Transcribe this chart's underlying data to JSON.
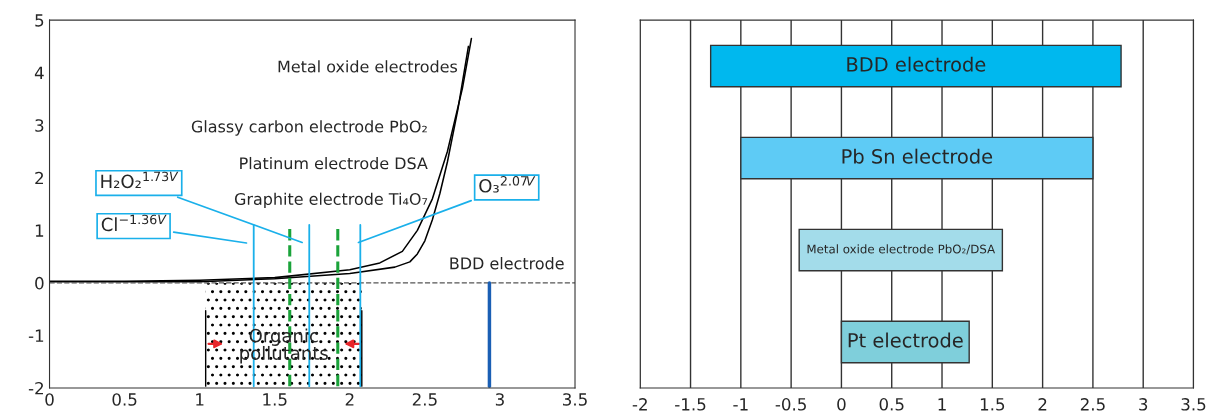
{
  "chart_data": [
    {
      "type": "line",
      "xlim": [
        0,
        3.5
      ],
      "ylim": [
        -2,
        5
      ],
      "xticks": [
        0,
        0.5,
        1,
        1.5,
        2,
        2.5,
        3,
        3.5
      ],
      "yticks": [
        -2,
        -1,
        0,
        1,
        2,
        3,
        4,
        5
      ],
      "grid": false,
      "series": [
        {
          "color": "#000000",
          "x": [
            0,
            0.5,
            1,
            1.5,
            2,
            2.2,
            2.35,
            2.45,
            2.55,
            2.65,
            2.75,
            2.81
          ],
          "values": [
            0.03,
            0.03,
            0.05,
            0.1,
            0.25,
            0.38,
            0.6,
            1.0,
            1.6,
            2.5,
            3.7,
            4.65
          ]
        },
        {
          "color": "#000000",
          "x": [
            0,
            1,
            1.5,
            2,
            2.3,
            2.4,
            2.45,
            2.5,
            2.55,
            2.6,
            2.65,
            2.72,
            2.79
          ],
          "values": [
            0.02,
            0.02,
            0.08,
            0.18,
            0.3,
            0.4,
            0.55,
            0.8,
            1.2,
            1.7,
            2.3,
            3.3,
            4.5
          ]
        }
      ],
      "ref_lines": [
        {
          "axis": "y",
          "value": 0,
          "color": "#555555",
          "line_style": "dashed"
        },
        {
          "axis": "x",
          "value": 1.36,
          "color": "#1ab0ea",
          "label": "Cl$^{−1.36V}$"
        },
        {
          "axis": "x",
          "value": 1.73,
          "color": "#1ab0ea",
          "label": "H₂O₂$^{1.73V}$"
        },
        {
          "axis": "x",
          "value": 2.07,
          "color": "#1ab0ea",
          "label": "O₃$^{2.07V}$"
        },
        {
          "axis": "x",
          "value": 1.6,
          "color": "#1aa33a",
          "line_style": "dashed"
        },
        {
          "axis": "x",
          "value": 1.92,
          "color": "#1aa33a",
          "line_style": "dashed"
        },
        {
          "axis": "x",
          "value": 2.93,
          "color": "#1a5fb4"
        },
        {
          "axis": "x",
          "value": 1.04,
          "color": "#000000"
        },
        {
          "axis": "x",
          "value": 2.08,
          "color": "#000000"
        }
      ],
      "bands": [
        {
          "axis": "x",
          "from": 1.04,
          "to": 2.08,
          "label": "Organic\npollutants",
          "color": "#000000"
        }
      ],
      "annotations": [
        "Metal oxide electrodes",
        "Glassy carbon electrode PbO₂",
        "Platinum electrode DSA",
        "Graphite electrode Ti₄O₇",
        "BDD electrode"
      ]
    },
    {
      "type": "bar",
      "orientation": "horizontal",
      "categories": [
        "BDD electrode",
        "Pb Sn electrode",
        "Metal oxide electrode PbO₂/DSA",
        "Pt electrode"
      ],
      "base": [
        -1.3,
        -1,
        -0.42,
        0
      ],
      "values": [
        4.08,
        3.5,
        2.02,
        1.27
      ],
      "colors": [
        "#00b8ee",
        "#5ecbf5",
        "#a3dcea",
        "#7fcfdb"
      ],
      "xlim": [
        -2,
        3.5
      ],
      "xticks": [
        -2,
        -1.5,
        -1,
        -0.5,
        0,
        0.5,
        1,
        1.5,
        2,
        2.5,
        3,
        3.5
      ],
      "grid": "x",
      "tick_labels": "x"
    }
  ]
}
